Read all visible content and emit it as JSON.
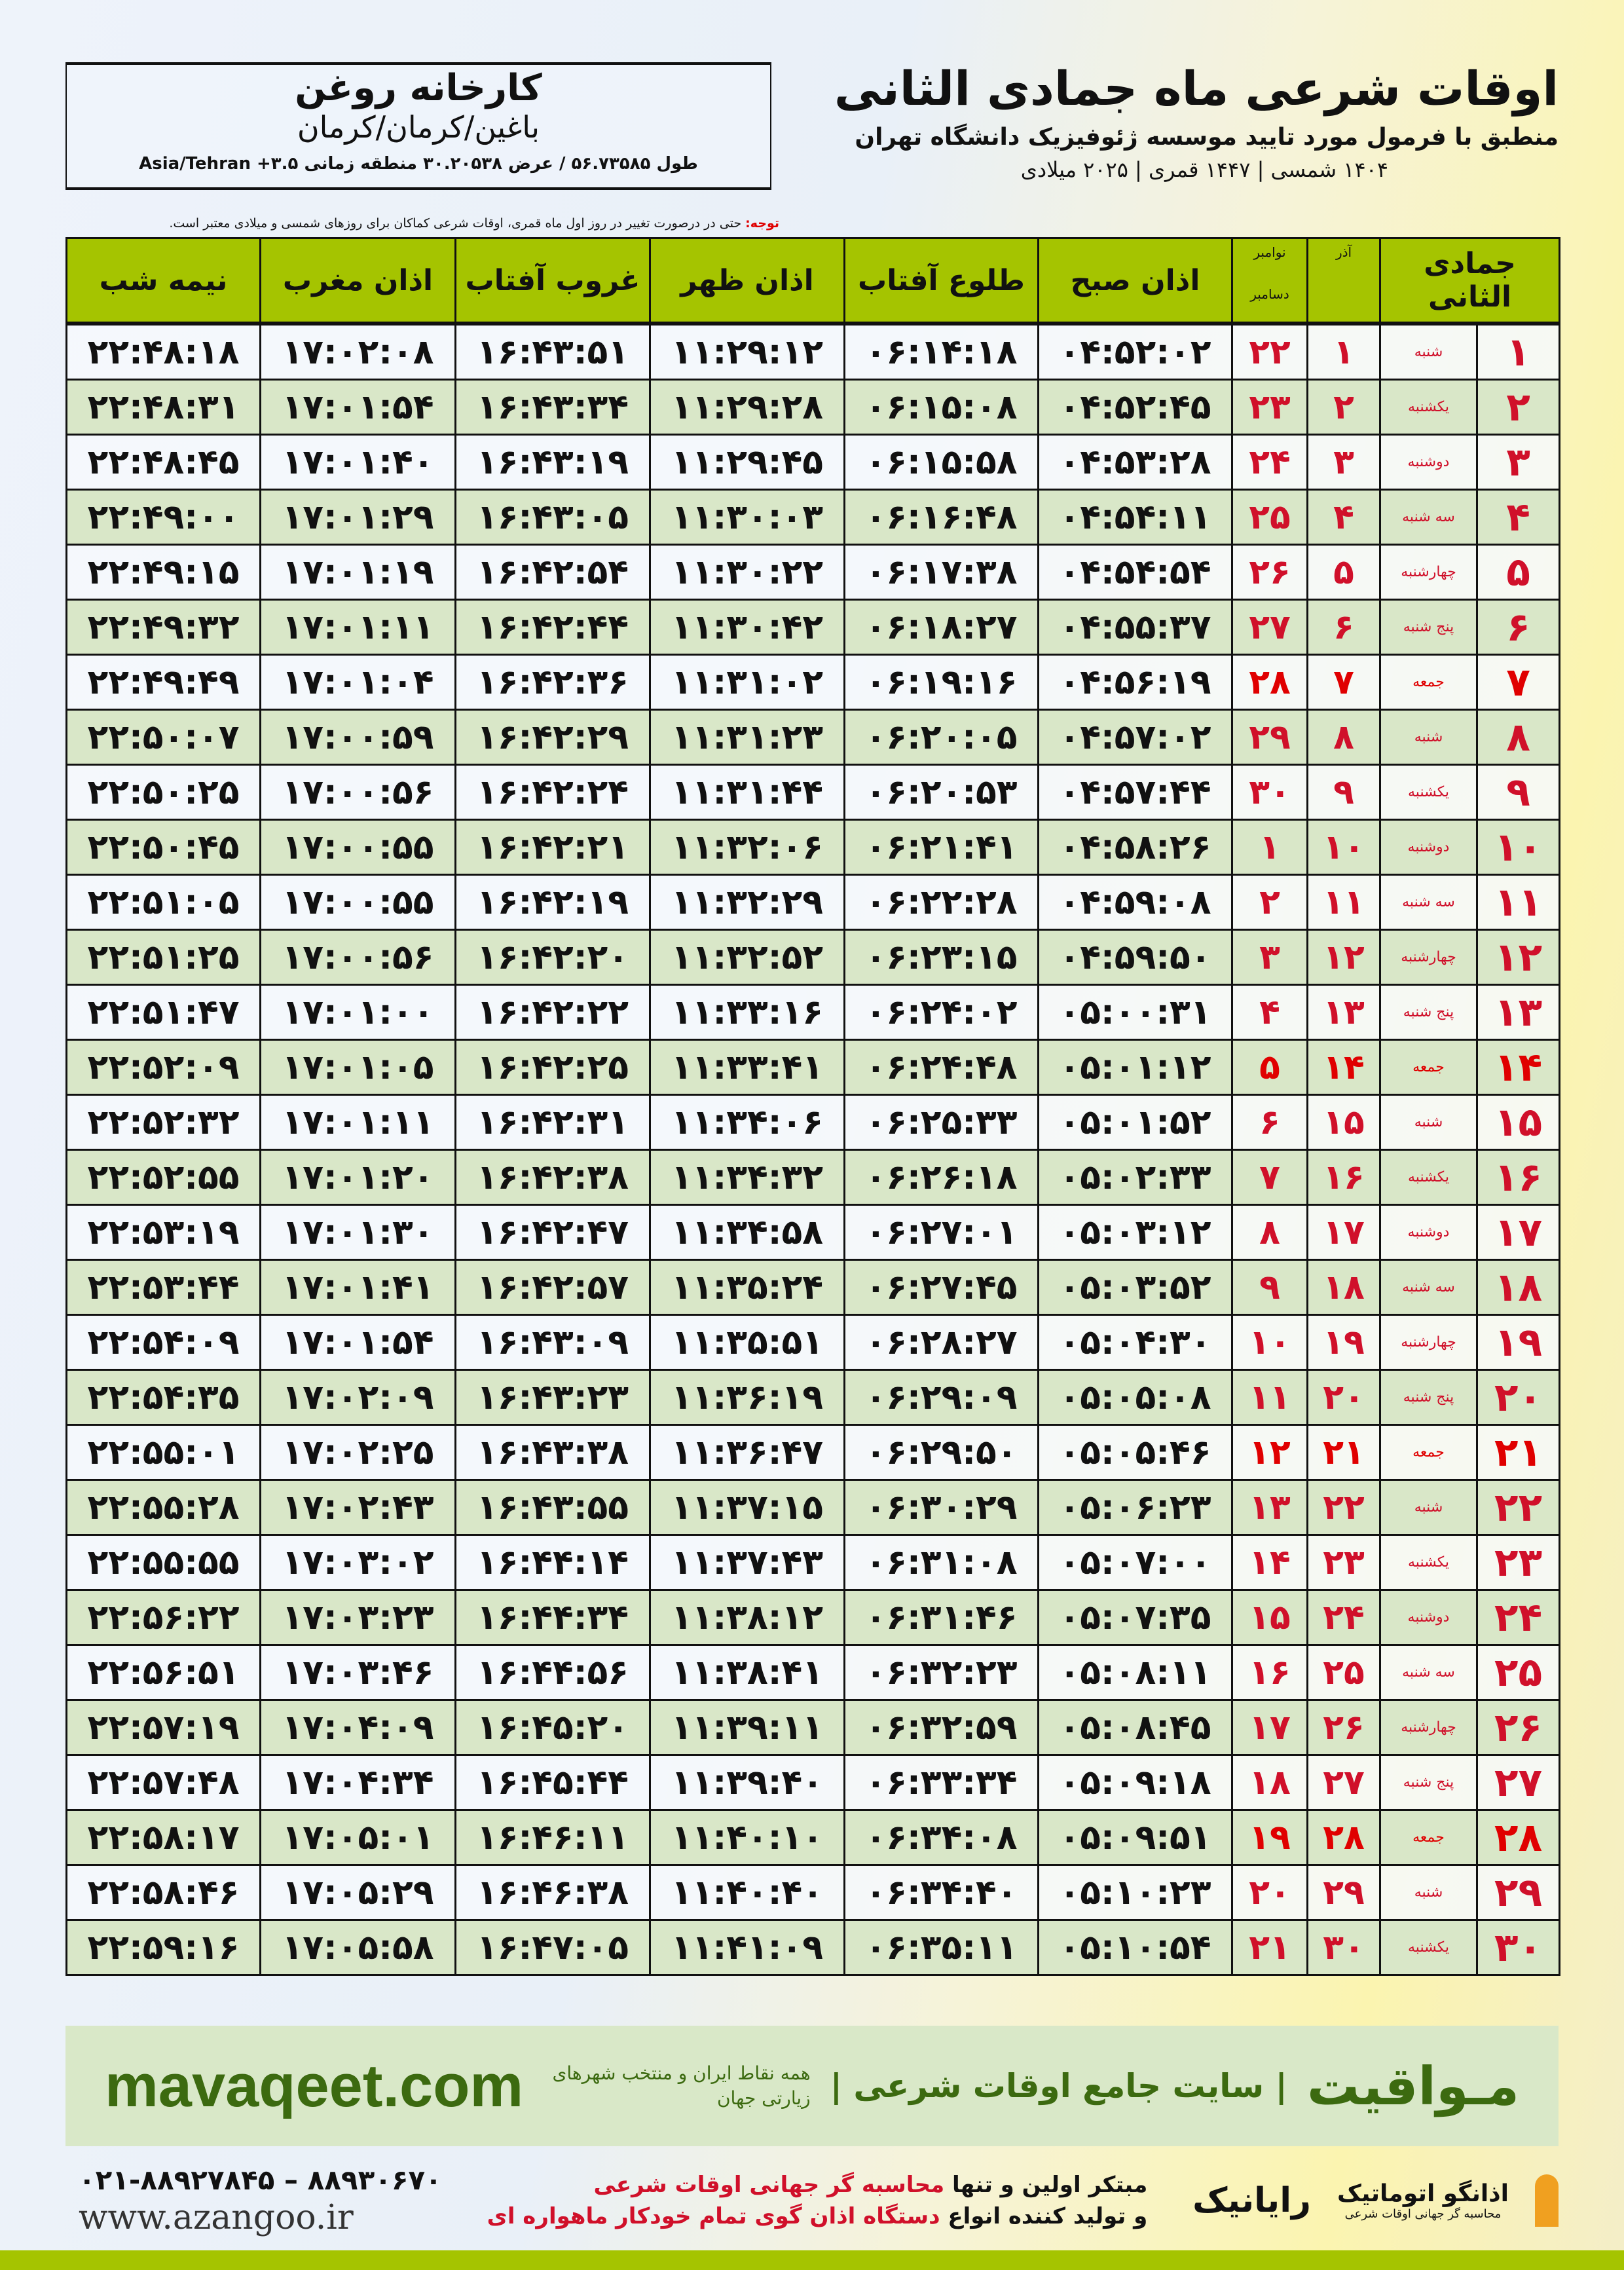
{
  "header": {
    "title": "اوقات شرعی ماه جمادی الثانی",
    "subtitle": "منطبق با فرمول مورد تایید موسسه ژئوفیزیک دانشگاه تهران",
    "dates": "۱۴۰۴ شمسی | ۱۴۴۷ قمری | ۲۰۲۵ میلادی",
    "note_label": "توجه:",
    "note_text": " حتی در درصورت تغییر در روز اول ماه قمری، اوقات شرعی کماکان برای روزهای شمسی و میلادی معتبر است."
  },
  "location": {
    "name": "کارخانه روغن",
    "path": "باغین/کرمان/کرمان",
    "coords": "طول ۵۶.۷۳۵۸۵ / عرض ۳۰.۲۰۵۳۸ منطقه زمانی ۳.۵+ Asia/Tehran"
  },
  "table": {
    "columns": {
      "hijri": "جمادی الثانی",
      "azar": "آذر",
      "gregorian_top": "نوامبر",
      "gregorian_bottom": "دسامبر",
      "fajr": "اذان صبح",
      "sunrise": "طلوع آفتاب",
      "dhuhr": "اذان ظهر",
      "sunset": "غروب آفتاب",
      "maghrib": "اذان مغرب",
      "midnight": "نیمه شب"
    },
    "friday_color": "#e00000",
    "header_color": "#a5c400",
    "rows": [
      [
        "۱",
        "شنبه",
        "۱",
        "۲۲",
        "۰۴:۵۲:۰۲",
        "۰۶:۱۴:۱۸",
        "۱۱:۲۹:۱۲",
        "۱۶:۴۳:۵۱",
        "۱۷:۰۲:۰۸",
        "۲۲:۴۸:۱۸"
      ],
      [
        "۲",
        "یکشنبه",
        "۲",
        "۲۳",
        "۰۴:۵۲:۴۵",
        "۰۶:۱۵:۰۸",
        "۱۱:۲۹:۲۸",
        "۱۶:۴۳:۳۴",
        "۱۷:۰۱:۵۴",
        "۲۲:۴۸:۳۱"
      ],
      [
        "۳",
        "دوشنبه",
        "۳",
        "۲۴",
        "۰۴:۵۳:۲۸",
        "۰۶:۱۵:۵۸",
        "۱۱:۲۹:۴۵",
        "۱۶:۴۳:۱۹",
        "۱۷:۰۱:۴۰",
        "۲۲:۴۸:۴۵"
      ],
      [
        "۴",
        "سه شنبه",
        "۴",
        "۲۵",
        "۰۴:۵۴:۱۱",
        "۰۶:۱۶:۴۸",
        "۱۱:۳۰:۰۳",
        "۱۶:۴۳:۰۵",
        "۱۷:۰۱:۲۹",
        "۲۲:۴۹:۰۰"
      ],
      [
        "۵",
        "چهارشنبه",
        "۵",
        "۲۶",
        "۰۴:۵۴:۵۴",
        "۰۶:۱۷:۳۸",
        "۱۱:۳۰:۲۲",
        "۱۶:۴۲:۵۴",
        "۱۷:۰۱:۱۹",
        "۲۲:۴۹:۱۵"
      ],
      [
        "۶",
        "پنج شنبه",
        "۶",
        "۲۷",
        "۰۴:۵۵:۳۷",
        "۰۶:۱۸:۲۷",
        "۱۱:۳۰:۴۲",
        "۱۶:۴۲:۴۴",
        "۱۷:۰۱:۱۱",
        "۲۲:۴۹:۳۲"
      ],
      [
        "۷",
        "جمعه",
        "۷",
        "۲۸",
        "۰۴:۵۶:۱۹",
        "۰۶:۱۹:۱۶",
        "۱۱:۳۱:۰۲",
        "۱۶:۴۲:۳۶",
        "۱۷:۰۱:۰۴",
        "۲۲:۴۹:۴۹"
      ],
      [
        "۸",
        "شنبه",
        "۸",
        "۲۹",
        "۰۴:۵۷:۰۲",
        "۰۶:۲۰:۰۵",
        "۱۱:۳۱:۲۳",
        "۱۶:۴۲:۲۹",
        "۱۷:۰۰:۵۹",
        "۲۲:۵۰:۰۷"
      ],
      [
        "۹",
        "یکشنبه",
        "۹",
        "۳۰",
        "۰۴:۵۷:۴۴",
        "۰۶:۲۰:۵۳",
        "۱۱:۳۱:۴۴",
        "۱۶:۴۲:۲۴",
        "۱۷:۰۰:۵۶",
        "۲۲:۵۰:۲۵"
      ],
      [
        "۱۰",
        "دوشنبه",
        "۱۰",
        "۱",
        "۰۴:۵۸:۲۶",
        "۰۶:۲۱:۴۱",
        "۱۱:۳۲:۰۶",
        "۱۶:۴۲:۲۱",
        "۱۷:۰۰:۵۵",
        "۲۲:۵۰:۴۵"
      ],
      [
        "۱۱",
        "سه شنبه",
        "۱۱",
        "۲",
        "۰۴:۵۹:۰۸",
        "۰۶:۲۲:۲۸",
        "۱۱:۳۲:۲۹",
        "۱۶:۴۲:۱۹",
        "۱۷:۰۰:۵۵",
        "۲۲:۵۱:۰۵"
      ],
      [
        "۱۲",
        "چهارشنبه",
        "۱۲",
        "۳",
        "۰۴:۵۹:۵۰",
        "۰۶:۲۳:۱۵",
        "۱۱:۳۲:۵۲",
        "۱۶:۴۲:۲۰",
        "۱۷:۰۰:۵۶",
        "۲۲:۵۱:۲۵"
      ],
      [
        "۱۳",
        "پنج شنبه",
        "۱۳",
        "۴",
        "۰۵:۰۰:۳۱",
        "۰۶:۲۴:۰۲",
        "۱۱:۳۳:۱۶",
        "۱۶:۴۲:۲۲",
        "۱۷:۰۱:۰۰",
        "۲۲:۵۱:۴۷"
      ],
      [
        "۱۴",
        "جمعه",
        "۱۴",
        "۵",
        "۰۵:۰۱:۱۲",
        "۰۶:۲۴:۴۸",
        "۱۱:۳۳:۴۱",
        "۱۶:۴۲:۲۵",
        "۱۷:۰۱:۰۵",
        "۲۲:۵۲:۰۹"
      ],
      [
        "۱۵",
        "شنبه",
        "۱۵",
        "۶",
        "۰۵:۰۱:۵۲",
        "۰۶:۲۵:۳۳",
        "۱۱:۳۴:۰۶",
        "۱۶:۴۲:۳۱",
        "۱۷:۰۱:۱۱",
        "۲۲:۵۲:۳۲"
      ],
      [
        "۱۶",
        "یکشنبه",
        "۱۶",
        "۷",
        "۰۵:۰۲:۳۳",
        "۰۶:۲۶:۱۸",
        "۱۱:۳۴:۳۲",
        "۱۶:۴۲:۳۸",
        "۱۷:۰۱:۲۰",
        "۲۲:۵۲:۵۵"
      ],
      [
        "۱۷",
        "دوشنبه",
        "۱۷",
        "۸",
        "۰۵:۰۳:۱۲",
        "۰۶:۲۷:۰۱",
        "۱۱:۳۴:۵۸",
        "۱۶:۴۲:۴۷",
        "۱۷:۰۱:۳۰",
        "۲۲:۵۳:۱۹"
      ],
      [
        "۱۸",
        "سه شنبه",
        "۱۸",
        "۹",
        "۰۵:۰۳:۵۲",
        "۰۶:۲۷:۴۵",
        "۱۱:۳۵:۲۴",
        "۱۶:۴۲:۵۷",
        "۱۷:۰۱:۴۱",
        "۲۲:۵۳:۴۴"
      ],
      [
        "۱۹",
        "چهارشنبه",
        "۱۹",
        "۱۰",
        "۰۵:۰۴:۳۰",
        "۰۶:۲۸:۲۷",
        "۱۱:۳۵:۵۱",
        "۱۶:۴۳:۰۹",
        "۱۷:۰۱:۵۴",
        "۲۲:۵۴:۰۹"
      ],
      [
        "۲۰",
        "پنج شنبه",
        "۲۰",
        "۱۱",
        "۰۵:۰۵:۰۸",
        "۰۶:۲۹:۰۹",
        "۱۱:۳۶:۱۹",
        "۱۶:۴۳:۲۳",
        "۱۷:۰۲:۰۹",
        "۲۲:۵۴:۳۵"
      ],
      [
        "۲۱",
        "جمعه",
        "۲۱",
        "۱۲",
        "۰۵:۰۵:۴۶",
        "۰۶:۲۹:۵۰",
        "۱۱:۳۶:۴۷",
        "۱۶:۴۳:۳۸",
        "۱۷:۰۲:۲۵",
        "۲۲:۵۵:۰۱"
      ],
      [
        "۲۲",
        "شنبه",
        "۲۲",
        "۱۳",
        "۰۵:۰۶:۲۳",
        "۰۶:۳۰:۲۹",
        "۱۱:۳۷:۱۵",
        "۱۶:۴۳:۵۵",
        "۱۷:۰۲:۴۳",
        "۲۲:۵۵:۲۸"
      ],
      [
        "۲۳",
        "یکشنبه",
        "۲۳",
        "۱۴",
        "۰۵:۰۷:۰۰",
        "۰۶:۳۱:۰۸",
        "۱۱:۳۷:۴۳",
        "۱۶:۴۴:۱۴",
        "۱۷:۰۳:۰۲",
        "۲۲:۵۵:۵۵"
      ],
      [
        "۲۴",
        "دوشنبه",
        "۲۴",
        "۱۵",
        "۰۵:۰۷:۳۵",
        "۰۶:۳۱:۴۶",
        "۱۱:۳۸:۱۲",
        "۱۶:۴۴:۳۴",
        "۱۷:۰۳:۲۳",
        "۲۲:۵۶:۲۲"
      ],
      [
        "۲۵",
        "سه شنبه",
        "۲۵",
        "۱۶",
        "۰۵:۰۸:۱۱",
        "۰۶:۳۲:۲۳",
        "۱۱:۳۸:۴۱",
        "۱۶:۴۴:۵۶",
        "۱۷:۰۳:۴۶",
        "۲۲:۵۶:۵۱"
      ],
      [
        "۲۶",
        "چهارشنبه",
        "۲۶",
        "۱۷",
        "۰۵:۰۸:۴۵",
        "۰۶:۳۲:۵۹",
        "۱۱:۳۹:۱۱",
        "۱۶:۴۵:۲۰",
        "۱۷:۰۴:۰۹",
        "۲۲:۵۷:۱۹"
      ],
      [
        "۲۷",
        "پنج شنبه",
        "۲۷",
        "۱۸",
        "۰۵:۰۹:۱۸",
        "۰۶:۳۳:۳۴",
        "۱۱:۳۹:۴۰",
        "۱۶:۴۵:۴۴",
        "۱۷:۰۴:۳۴",
        "۲۲:۵۷:۴۸"
      ],
      [
        "۲۸",
        "جمعه",
        "۲۸",
        "۱۹",
        "۰۵:۰۹:۵۱",
        "۰۶:۳۴:۰۸",
        "۱۱:۴۰:۱۰",
        "۱۶:۴۶:۱۱",
        "۱۷:۰۵:۰۱",
        "۲۲:۵۸:۱۷"
      ],
      [
        "۲۹",
        "شنبه",
        "۲۹",
        "۲۰",
        "۰۵:۱۰:۲۳",
        "۰۶:۳۴:۴۰",
        "۱۱:۴۰:۴۰",
        "۱۶:۴۶:۳۸",
        "۱۷:۰۵:۲۹",
        "۲۲:۵۸:۴۶"
      ],
      [
        "۳۰",
        "یکشنبه",
        "۳۰",
        "۲۱",
        "۰۵:۱۰:۵۴",
        "۰۶:۳۵:۱۱",
        "۱۱:۴۱:۰۹",
        "۱۶:۴۷:۰۵",
        "۱۷:۰۵:۵۸",
        "۲۲:۵۹:۱۶"
      ]
    ],
    "friday_rows": [
      7,
      14,
      21,
      28
    ]
  },
  "promo": {
    "brand": "مـواقیت",
    "tagline": "| سایت جامع اوقات شرعی |",
    "sub": "همه نقاط ایران و منتخب شهرهای زیارتی جهان",
    "site": "mavaqeet.com",
    "color": "#3c6a10"
  },
  "footer": {
    "phones": "۰۲۱-۸۸۹۲۷۸۴۵ – ۸۸۹۳۰۶۷۰",
    "web": "www.azangoo.ir",
    "line1_a": "مبتکر اولین و تنها ",
    "line1_b": "محاسبه گر جهانی اوقات شرعی",
    "line2_a": "و تولید کننده انواع ",
    "line2_b": "دستگاه اذان گوی تمام خودکار ماهواره ای",
    "logo_rayanik": "رایانیک",
    "logo_azangoo": "اذانگو اتوماتیک",
    "logo_azangoo_sub": "محاسبه گر جهانی اوقات شرعی"
  }
}
